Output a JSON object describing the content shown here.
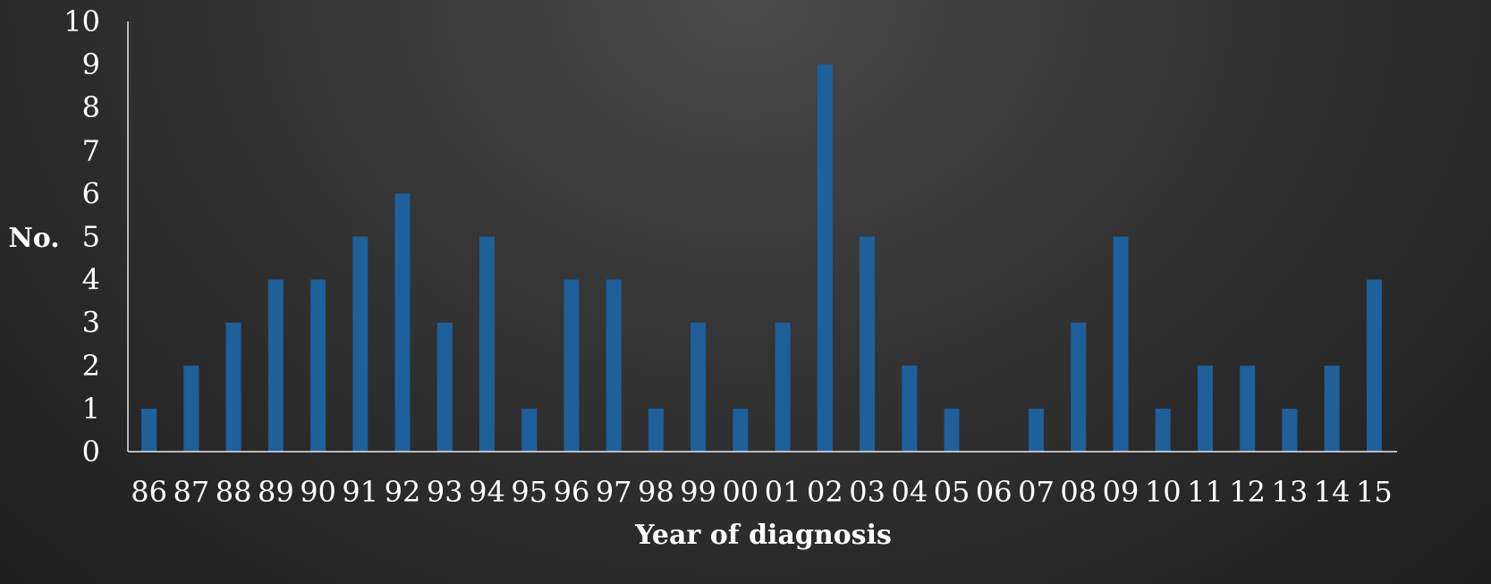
{
  "chart_data": {
    "type": "bar",
    "title": "",
    "xlabel": "Year of diagnosis",
    "ylabel": "No.",
    "ylim": [
      0,
      10
    ],
    "yticks": [
      0,
      1,
      2,
      3,
      4,
      5,
      6,
      7,
      8,
      9,
      10
    ],
    "grid": false,
    "legend": "none",
    "bar_color": "#1f5f9a",
    "categories": [
      "86",
      "87",
      "88",
      "89",
      "90",
      "91",
      "92",
      "93",
      "94",
      "95",
      "96",
      "97",
      "98",
      "99",
      "00",
      "01",
      "02",
      "03",
      "04",
      "05",
      "06",
      "07",
      "08",
      "09",
      "10",
      "11",
      "12",
      "13",
      "14",
      "15"
    ],
    "values": [
      1,
      2,
      3,
      4,
      4,
      5,
      6,
      3,
      5,
      1,
      4,
      4,
      1,
      3,
      1,
      3,
      9,
      5,
      2,
      1,
      0,
      1,
      3,
      5,
      1,
      2,
      2,
      1,
      2,
      4
    ]
  }
}
